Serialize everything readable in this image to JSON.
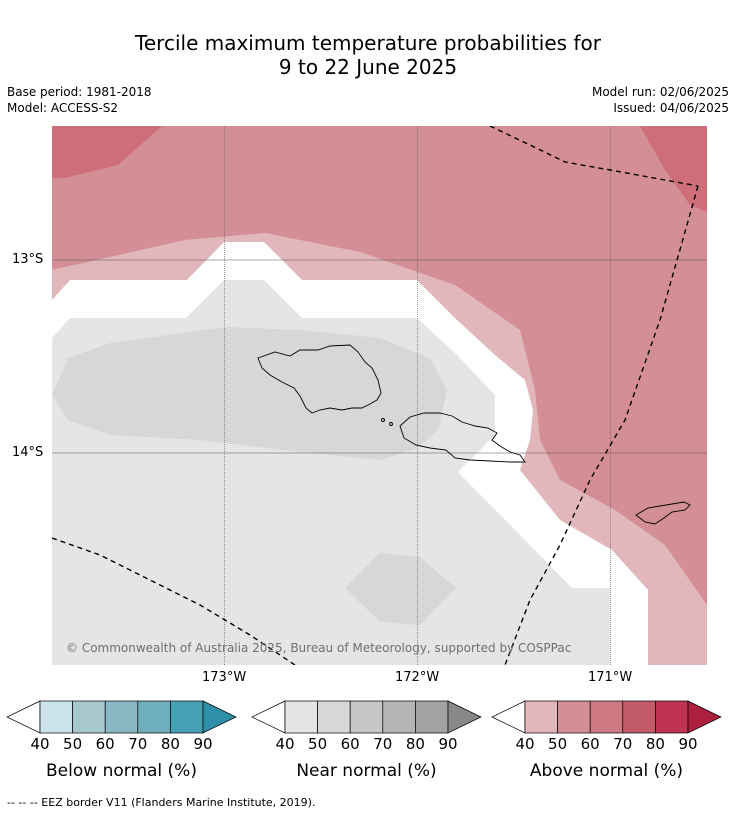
{
  "title_line1": "Tercile maximum temperature probabilities for",
  "title_line2": "9 to 22 June 2025",
  "base_period": "Base period: 1981-2018",
  "model": "Model: ACCESS-S2",
  "model_run": "Model run: 02/06/2025",
  "issued": "Issued: 04/06/2025",
  "lat_labels": [
    "13°S",
    "14°S"
  ],
  "lon_labels": [
    "173°W",
    "172°W",
    "171°W"
  ],
  "copyright": "© Commonwealth of Australia 2025, Bureau of Meteorology, supported by COSPPac",
  "colorbars": [
    {
      "title": "Below normal (%)",
      "ticks": [
        "40",
        "50",
        "60",
        "70",
        "80",
        "90"
      ],
      "colors": [
        "#cce3ea",
        "#a8c8cf",
        "#8ab7c4",
        "#6eaebd",
        "#47a0b4",
        "#2e8fa8"
      ]
    },
    {
      "title": "Near normal (%)",
      "ticks": [
        "40",
        "50",
        "60",
        "70",
        "80",
        "90"
      ],
      "colors": [
        "#e5e5e5",
        "#d7d7d7",
        "#c6c6c6",
        "#b5b5b5",
        "#a2a2a2",
        "#888888"
      ]
    },
    {
      "title": "Above normal (%)",
      "ticks": [
        "40",
        "50",
        "60",
        "70",
        "80",
        "90"
      ],
      "colors": [
        "#e1b7bb",
        "#d48f96",
        "#cd7a82",
        "#c35c68",
        "#be3450",
        "#ad1f3e"
      ]
    }
  ],
  "footnote": "--  --  -- EEZ border V11 (Flanders Marine Institute, 2019).",
  "map_colors": {
    "above_40": "#e1b7bb",
    "above_50": "#d48f96",
    "above_60": "#cd6e78",
    "near_40": "#e5e5e5",
    "near_50": "#d7d7d7",
    "blank": "#ffffff"
  }
}
